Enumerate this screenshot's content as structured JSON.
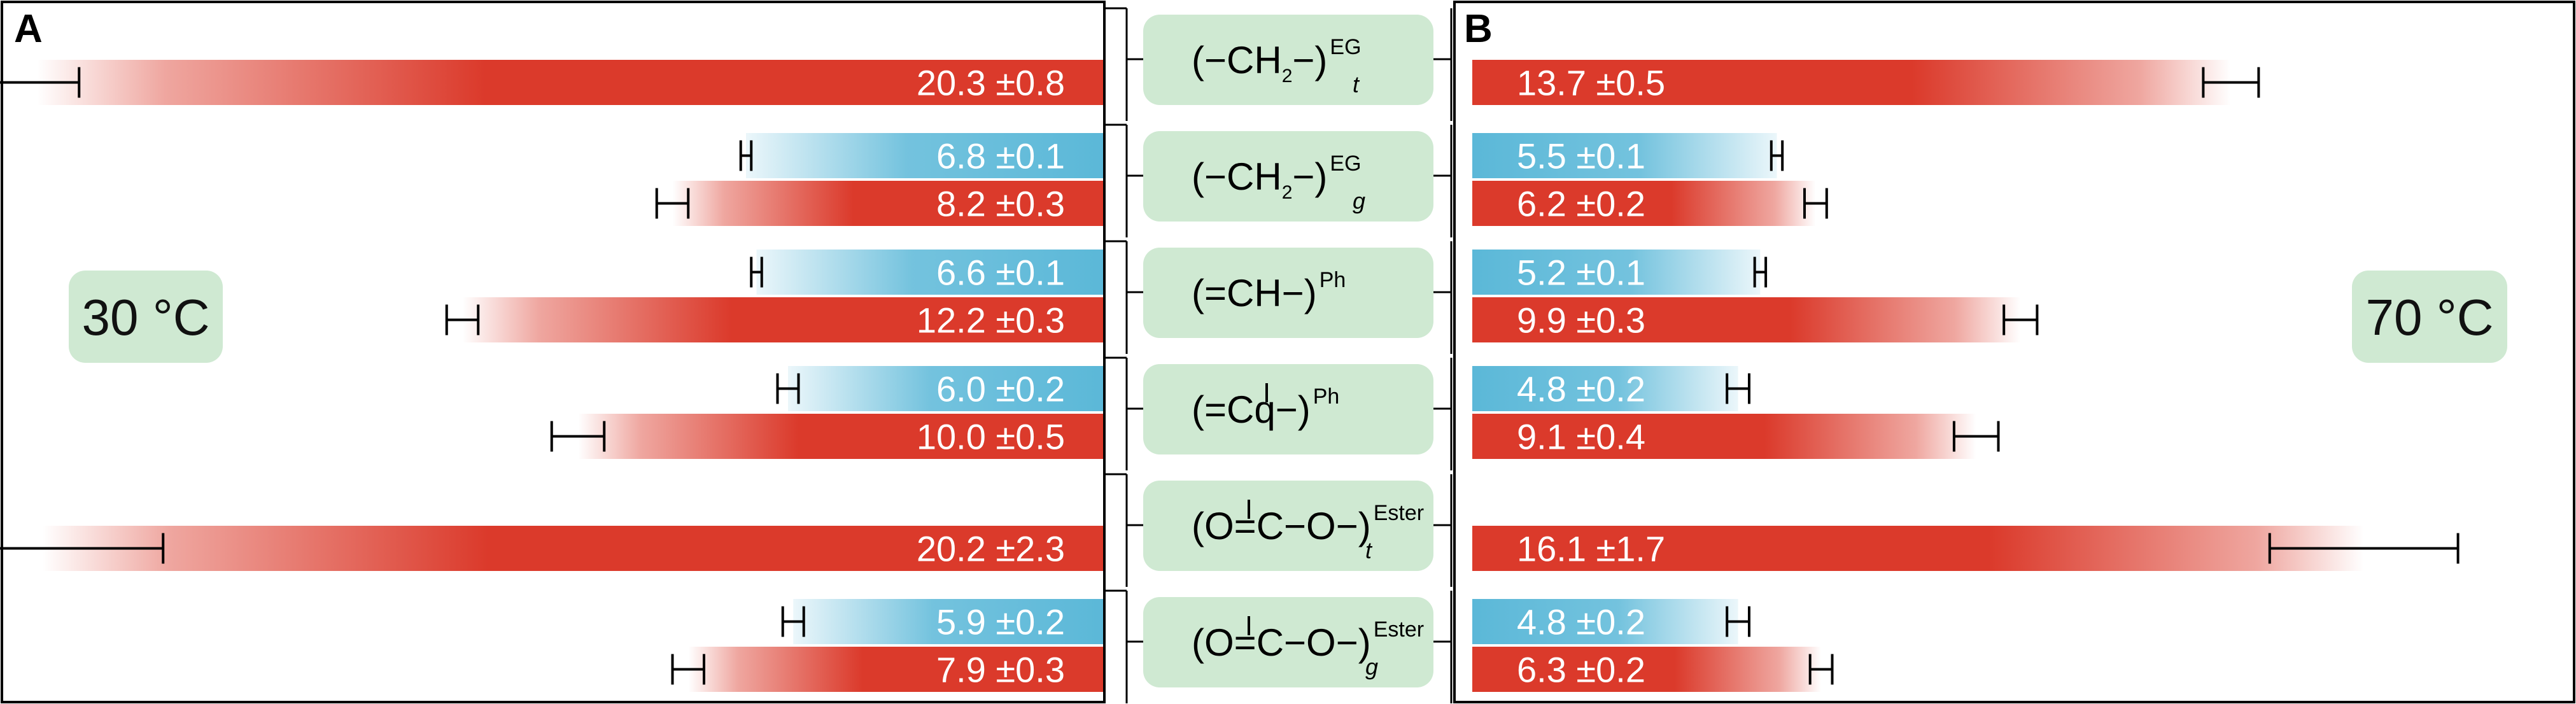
{
  "chart_data": {
    "type": "bar",
    "panels": [
      {
        "letter": "A",
        "temperature": "30 °C",
        "direction": "left"
      },
      {
        "letter": "B",
        "temperature": "70 °C",
        "direction": "right"
      }
    ],
    "groups": [
      {
        "id": "ch2-t",
        "formula": [
          "(−CH",
          "2",
          "−)"
        ],
        "sup": "EG",
        "sub": "t"
      },
      {
        "id": "ch2-g",
        "formula": [
          "(−CH",
          "2",
          "−)"
        ],
        "sup": "EG",
        "sub": "g"
      },
      {
        "id": "ch",
        "formula": [
          "(=CH−)"
        ],
        "sup": "Ph",
        "sub": ""
      },
      {
        "id": "cq",
        "formula": [
          "(=Cq−)"
        ],
        "sup": "Ph",
        "sub": "",
        "bond_mark": true
      },
      {
        "id": "ester-t",
        "formula": [
          "(O=C−O−)"
        ],
        "sup": "Ester",
        "sub": "t",
        "bond_mark": true
      },
      {
        "id": "ester-g",
        "formula": [
          "(O=C−O−)"
        ],
        "sup": "Ester",
        "sub": "g",
        "bond_mark": true
      }
    ],
    "series": [
      {
        "color": "#db3a2b",
        "panel_A": [
          {
            "value": 20.3,
            "error": 0.8,
            "label": "20.3 ±0.8"
          },
          {
            "value": 8.2,
            "error": 0.3,
            "label": "8.2 ±0.3"
          },
          {
            "value": 12.2,
            "error": 0.3,
            "label": "12.2 ±0.3"
          },
          {
            "value": 10.0,
            "error": 0.5,
            "label": "10.0 ±0.5"
          },
          {
            "value": 20.2,
            "error": 2.3,
            "label": "20.2 ±2.3"
          },
          {
            "value": 7.9,
            "error": 0.3,
            "label": "7.9 ±0.3"
          }
        ],
        "panel_B": [
          {
            "value": 13.7,
            "error": 0.5,
            "label": "13.7 ±0.5"
          },
          {
            "value": 6.2,
            "error": 0.2,
            "label": "6.2 ±0.2"
          },
          {
            "value": 9.9,
            "error": 0.3,
            "label": "9.9 ±0.3"
          },
          {
            "value": 9.1,
            "error": 0.4,
            "label": "9.1 ±0.4"
          },
          {
            "value": 16.1,
            "error": 1.7,
            "label": "16.1 ±1.7"
          },
          {
            "value": 6.3,
            "error": 0.2,
            "label": "6.3 ±0.2"
          }
        ]
      },
      {
        "color": "#5bb8d8",
        "panel_A": [
          null,
          {
            "value": 6.8,
            "error": 0.1,
            "label": "6.8 ±0.1"
          },
          {
            "value": 6.6,
            "error": 0.1,
            "label": "6.6 ±0.1"
          },
          {
            "value": 6.0,
            "error": 0.2,
            "label": "6.0 ±0.2"
          },
          null,
          {
            "value": 5.9,
            "error": 0.2,
            "label": "5.9 ±0.2"
          }
        ],
        "panel_B": [
          null,
          {
            "value": 5.5,
            "error": 0.1,
            "label": "5.5 ±0.1"
          },
          {
            "value": 5.2,
            "error": 0.1,
            "label": "5.2 ±0.1"
          },
          {
            "value": 4.8,
            "error": 0.2,
            "label": "4.8 ±0.2"
          },
          null,
          {
            "value": 4.8,
            "error": 0.2,
            "label": "4.8 ±0.2"
          }
        ]
      }
    ],
    "colors": {
      "red": "#db3a2b",
      "blue": "#5bb8d8",
      "label_box": "#cfe9d2"
    }
  }
}
